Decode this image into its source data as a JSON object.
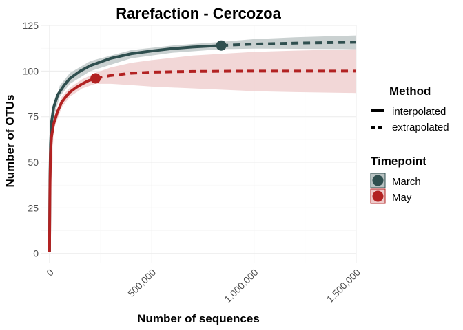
{
  "chart_data": {
    "type": "line",
    "title": "Rarefaction - Cercozoa",
    "xlabel": "Number of sequences",
    "ylabel": "Number of OTUs",
    "xlim": [
      -40000,
      1500000
    ],
    "ylim": [
      -5,
      125
    ],
    "xticks": [
      0,
      500000,
      1000000,
      1500000
    ],
    "xtick_labels": [
      "0",
      "500,000",
      "1,000,000",
      "1,500,000"
    ],
    "yticks": [
      0,
      25,
      50,
      75,
      100,
      125
    ],
    "ytick_labels": [
      "0",
      "25",
      "50",
      "75",
      "100",
      "125"
    ],
    "grid": true,
    "legends": [
      {
        "title": "Method",
        "entries": [
          {
            "label": "interpolated",
            "style": "solid"
          },
          {
            "label": "extrapolated",
            "style": "dashed"
          }
        ]
      },
      {
        "title": "Timepoint",
        "entries": [
          {
            "label": "March",
            "color": "#2f4f4f"
          },
          {
            "label": "May",
            "color": "#b22222"
          }
        ]
      }
    ],
    "series": [
      {
        "name": "March",
        "color": "#2f4f4f",
        "band_color": "#b8c2c2",
        "observed": {
          "x": 840000,
          "y": 114
        },
        "interpolated": [
          [
            0,
            1
          ],
          [
            2000,
            40
          ],
          [
            5000,
            60
          ],
          [
            10000,
            72
          ],
          [
            20000,
            80
          ],
          [
            40000,
            87
          ],
          [
            70000,
            92
          ],
          [
            100000,
            96
          ],
          [
            150000,
            100
          ],
          [
            200000,
            103
          ],
          [
            300000,
            107
          ],
          [
            400000,
            109.5
          ],
          [
            500000,
            111
          ],
          [
            600000,
            112.3
          ],
          [
            700000,
            113.2
          ],
          [
            840000,
            114
          ]
        ],
        "extrapolated": [
          [
            840000,
            114
          ],
          [
            1000000,
            114.8
          ],
          [
            1200000,
            115.3
          ],
          [
            1500000,
            115.8
          ]
        ],
        "ci_lower": [
          [
            0,
            1
          ],
          [
            10000,
            70
          ],
          [
            50000,
            86
          ],
          [
            100000,
            93
          ],
          [
            200000,
            100
          ],
          [
            400000,
            107
          ],
          [
            600000,
            110
          ],
          [
            840000,
            112
          ],
          [
            1000000,
            112.3
          ],
          [
            1200000,
            112.2
          ],
          [
            1500000,
            112
          ]
        ],
        "ci_upper": [
          [
            0,
            1
          ],
          [
            10000,
            74
          ],
          [
            50000,
            92
          ],
          [
            100000,
            99
          ],
          [
            200000,
            105.5
          ],
          [
            400000,
            111.5
          ],
          [
            600000,
            114
          ],
          [
            840000,
            116
          ],
          [
            1000000,
            117.5
          ],
          [
            1200000,
            118.5
          ],
          [
            1500000,
            119.5
          ]
        ]
      },
      {
        "name": "May",
        "color": "#b22222",
        "band_color": "#eecaca",
        "observed": {
          "x": 225000,
          "y": 96
        },
        "interpolated": [
          [
            0,
            1
          ],
          [
            2000,
            35
          ],
          [
            5000,
            55
          ],
          [
            10000,
            64
          ],
          [
            20000,
            71
          ],
          [
            40000,
            78
          ],
          [
            60000,
            83
          ],
          [
            80000,
            86
          ],
          [
            100000,
            88.5
          ],
          [
            130000,
            91
          ],
          [
            160000,
            93
          ],
          [
            190000,
            94.7
          ],
          [
            225000,
            96
          ]
        ],
        "extrapolated": [
          [
            225000,
            96
          ],
          [
            300000,
            97.6
          ],
          [
            400000,
            98.8
          ],
          [
            500000,
            99.4
          ],
          [
            700000,
            99.8
          ],
          [
            1000000,
            100
          ],
          [
            1500000,
            100
          ]
        ],
        "ci_lower": [
          [
            0,
            1
          ],
          [
            20000,
            68
          ],
          [
            60000,
            80
          ],
          [
            100000,
            86
          ],
          [
            160000,
            90.5
          ],
          [
            225000,
            93
          ],
          [
            300000,
            93
          ],
          [
            400000,
            92.3
          ],
          [
            500000,
            91.5
          ],
          [
            700000,
            90.5
          ],
          [
            1000000,
            89
          ],
          [
            1200000,
            88.5
          ],
          [
            1500000,
            88
          ]
        ],
        "ci_upper": [
          [
            0,
            1
          ],
          [
            20000,
            74
          ],
          [
            60000,
            86
          ],
          [
            100000,
            91
          ],
          [
            160000,
            95.5
          ],
          [
            225000,
            99
          ],
          [
            300000,
            102
          ],
          [
            400000,
            104.5
          ],
          [
            500000,
            106
          ],
          [
            700000,
            108.5
          ],
          [
            1000000,
            110.5
          ],
          [
            1200000,
            111.2
          ],
          [
            1500000,
            112
          ]
        ]
      }
    ]
  }
}
